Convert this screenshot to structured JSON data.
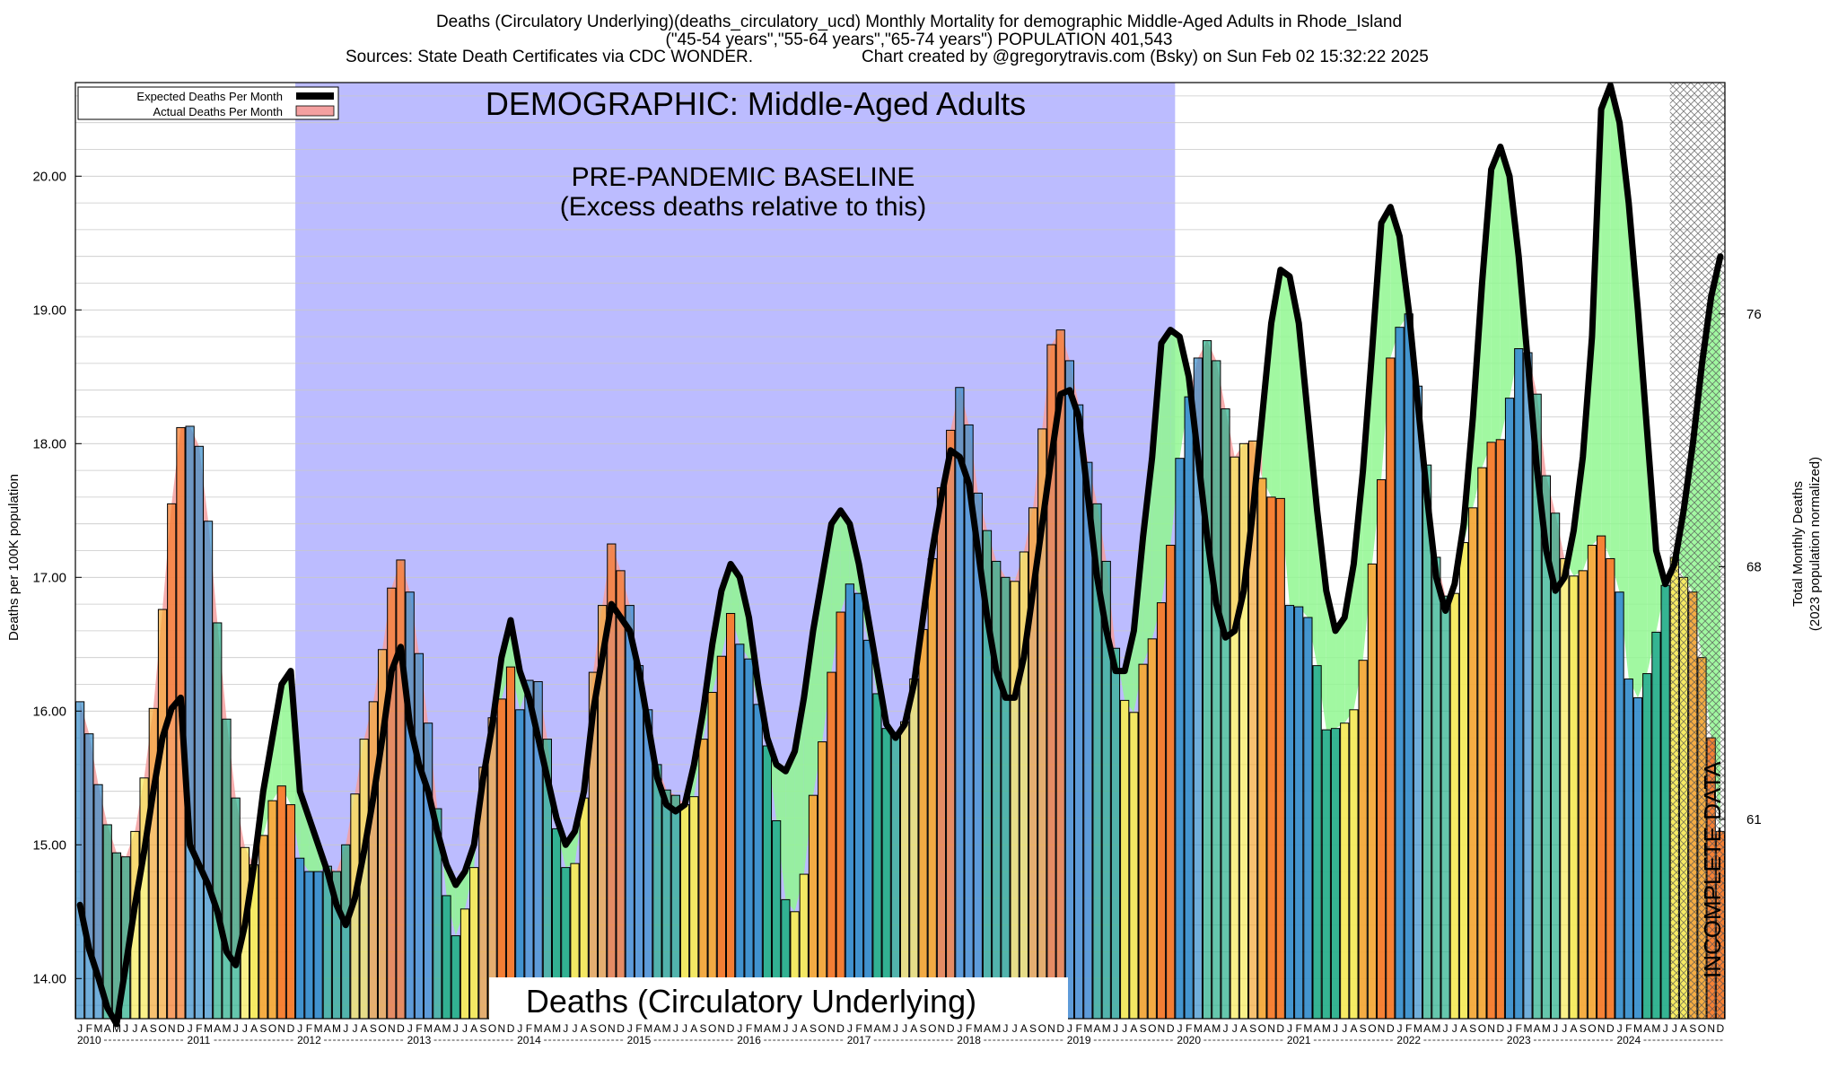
{
  "header": {
    "line1": "Deaths (Circulatory Underlying)(deaths_circulatory_ucd) Monthly Mortality for demographic Middle-Aged Adults in Rhode_Island",
    "line2": "(\"45-54 years\",\"55-64 years\",\"65-74 years\") POPULATION 401,543",
    "sources": "Sources: State Death Certificates via CDC WONDER.",
    "credit": "Chart created by @gregorytravis.com (Bsky) on Sun Feb 02 15:32:22 2025"
  },
  "annotations": {
    "demographic": "DEMOGRAPHIC: Middle-Aged Adults",
    "baseline_1": "PRE-PANDEMIC BASELINE",
    "baseline_2": "(Excess deaths relative to this)",
    "bottom_title": "Deaths (Circulatory Underlying)",
    "incomplete": "INCOMPLETE DATA"
  },
  "legend": {
    "expected": "Expected Deaths Per Month",
    "actual": "Actual Deaths Per Month"
  },
  "colors": {
    "baseline_band": "#bcbcff",
    "excess_fill": "#90f790",
    "deficit_fill": "#f4a0a0",
    "expected_line": "#000000",
    "bar_jan_feb": "#3a8fcc",
    "bar_spring": "#2ab08c",
    "bar_summer": "#f6ea5c",
    "bar_fall": "#f4a93a",
    "bar_peak": "#f57a2a"
  },
  "chart_data": {
    "type": "bar",
    "ylabel_left": "Deaths per 100K population",
    "ylabel_right_1": "Total Monthly Deaths",
    "ylabel_right_2": "(2023 population normalized)",
    "ylim": [
      13.7,
      20.7
    ],
    "yticks_left": [
      "14.00",
      "15.00",
      "16.00",
      "17.00",
      "18.00",
      "19.00",
      "20.00"
    ],
    "yticks_right": [
      {
        "label": "61",
        "at": 15.19
      },
      {
        "label": "68",
        "at": 17.08
      },
      {
        "label": "76",
        "at": 18.97
      }
    ],
    "baseline_period": [
      "2012-01",
      "2019-12"
    ],
    "incomplete_from": "2024-07",
    "month_letters": [
      "J",
      "F",
      "M",
      "A",
      "M",
      "J",
      "J",
      "A",
      "S",
      "O",
      "N",
      "D"
    ],
    "years": [
      "2010",
      "2011",
      "2012",
      "2013",
      "2014",
      "2015",
      "2016",
      "2017",
      "2018",
      "2019",
      "2020",
      "2021",
      "2022",
      "2023",
      "2024"
    ],
    "series": [
      {
        "name": "Actual Deaths Per Month",
        "values": [
          16.07,
          15.83,
          15.45,
          15.15,
          14.94,
          14.91,
          15.1,
          15.5,
          16.02,
          16.76,
          17.55,
          18.12,
          18.13,
          17.98,
          17.42,
          16.66,
          15.94,
          15.35,
          14.98,
          14.85,
          15.07,
          15.33,
          15.44,
          15.3,
          14.9,
          14.8,
          14.8,
          14.84,
          14.8,
          15.0,
          15.38,
          15.79,
          16.07,
          16.46,
          16.92,
          17.13,
          16.89,
          16.43,
          15.91,
          15.27,
          14.62,
          14.32,
          14.52,
          14.83,
          15.58,
          15.95,
          16.09,
          16.33,
          16.01,
          16.23,
          16.22,
          15.79,
          15.12,
          14.83,
          14.86,
          15.35,
          16.29,
          16.79,
          17.25,
          17.05,
          16.79,
          16.34,
          16.01,
          15.6,
          15.41,
          15.37,
          15.3,
          15.36,
          15.79,
          16.14,
          16.41,
          16.73,
          16.5,
          16.39,
          16.05,
          15.74,
          15.18,
          14.59,
          14.5,
          14.78,
          15.37,
          15.77,
          16.29,
          16.74,
          16.95,
          16.88,
          16.53,
          16.13,
          15.87,
          15.84,
          15.92,
          16.24,
          16.61,
          17.14,
          17.67,
          18.1,
          18.42,
          18.14,
          17.63,
          17.35,
          17.12,
          17.0,
          16.97,
          17.19,
          17.52,
          18.11,
          18.74,
          18.85,
          18.62,
          18.29,
          17.86,
          17.55,
          17.12,
          16.47,
          16.08,
          15.99,
          16.35,
          16.54,
          16.81,
          17.24,
          17.89,
          18.35,
          18.64,
          18.77,
          18.62,
          18.26,
          17.9,
          18.0,
          18.02,
          17.74,
          17.6,
          17.59,
          16.79,
          16.78,
          16.7,
          16.34,
          15.86,
          15.87,
          15.91,
          16.01,
          16.38,
          17.1,
          17.73,
          18.64,
          18.87,
          18.97,
          18.43,
          17.84,
          17.15,
          16.86,
          16.88,
          17.26,
          17.52,
          17.82,
          18.01,
          18.03,
          18.34,
          18.71,
          18.68,
          18.37,
          17.76,
          17.48,
          17.14,
          17.01,
          17.05,
          17.24,
          17.31,
          17.14,
          16.89,
          16.24,
          16.1,
          16.28,
          16.59,
          16.94,
          17.15,
          17.0,
          16.89,
          16.4,
          15.8,
          15.1
        ]
      },
      {
        "name": "Expected Deaths Per Month",
        "values": [
          14.55,
          14.22,
          14.01,
          13.78,
          13.66,
          14.1,
          14.55,
          14.95,
          15.4,
          15.8,
          16.02,
          16.1,
          15.0,
          14.85,
          14.7,
          14.5,
          14.2,
          14.1,
          14.4,
          14.85,
          15.4,
          15.8,
          16.2,
          16.3,
          15.4,
          15.2,
          15.0,
          14.8,
          14.55,
          14.4,
          14.6,
          14.95,
          15.35,
          15.8,
          16.3,
          16.48,
          15.9,
          15.6,
          15.4,
          15.1,
          14.85,
          14.7,
          14.8,
          15.0,
          15.5,
          15.9,
          16.4,
          16.68,
          16.3,
          16.1,
          15.8,
          15.5,
          15.2,
          15.0,
          15.1,
          15.4,
          16.0,
          16.4,
          16.8,
          16.7,
          16.6,
          16.3,
          15.9,
          15.5,
          15.3,
          15.25,
          15.3,
          15.6,
          16.0,
          16.5,
          16.9,
          17.1,
          17.0,
          16.7,
          16.2,
          15.8,
          15.6,
          15.55,
          15.7,
          16.1,
          16.6,
          17.0,
          17.4,
          17.5,
          17.4,
          17.1,
          16.7,
          16.3,
          15.9,
          15.8,
          15.9,
          16.2,
          16.7,
          17.2,
          17.6,
          17.95,
          17.9,
          17.7,
          17.2,
          16.7,
          16.3,
          16.1,
          16.1,
          16.4,
          16.9,
          17.4,
          17.9,
          18.37,
          18.4,
          18.2,
          17.6,
          17.0,
          16.6,
          16.3,
          16.3,
          16.6,
          17.3,
          17.9,
          18.75,
          18.85,
          18.8,
          18.5,
          17.9,
          17.3,
          16.8,
          16.55,
          16.6,
          16.9,
          17.5,
          18.2,
          18.9,
          19.3,
          19.25,
          18.9,
          18.2,
          17.5,
          16.9,
          16.6,
          16.7,
          17.1,
          17.8,
          18.7,
          19.65,
          19.77,
          19.55,
          19.0,
          18.3,
          17.6,
          17.0,
          16.75,
          16.95,
          17.4,
          18.2,
          19.2,
          20.05,
          20.22,
          20.0,
          19.4,
          18.6,
          17.8,
          17.2,
          16.9,
          17.0,
          17.35,
          17.9,
          18.8,
          20.5,
          20.68,
          20.4,
          19.8,
          19.0,
          18.1,
          17.2,
          16.95,
          17.1,
          17.5,
          18.0,
          18.6,
          19.1,
          19.4
        ]
      }
    ]
  }
}
